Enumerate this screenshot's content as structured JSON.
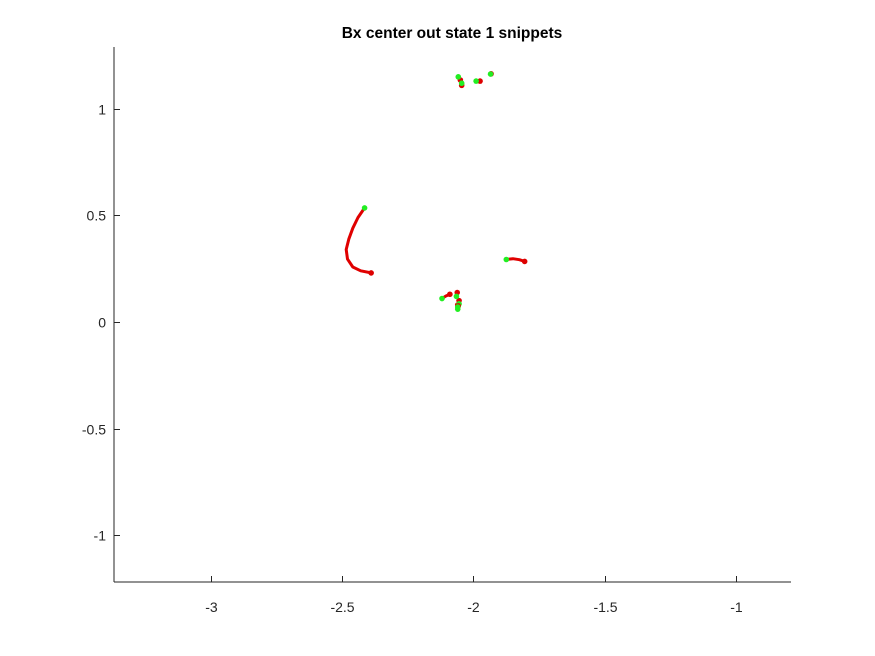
{
  "chart_data": {
    "type": "scatter",
    "title": "Bx  center out state 1 snippets",
    "xlabel": "",
    "ylabel": "",
    "xlim": [
      -3.37,
      -0.79
    ],
    "ylim": [
      -1.22,
      1.29
    ],
    "grid": false,
    "x_ticks": [
      {
        "value": -3,
        "label": "-3"
      },
      {
        "value": -2.5,
        "label": "-2.5"
      },
      {
        "value": -2,
        "label": "-2"
      },
      {
        "value": -1.5,
        "label": "-1.5"
      },
      {
        "value": -1,
        "label": "-1"
      }
    ],
    "y_ticks": [
      {
        "value": -1,
        "label": "-1"
      },
      {
        "value": -0.5,
        "label": "-0.5"
      },
      {
        "value": 0,
        "label": "0"
      },
      {
        "value": 0.5,
        "label": "0.5"
      },
      {
        "value": 1,
        "label": "1"
      }
    ],
    "colors": {
      "trajectory": "#e00000",
      "start_marker": "#22ee22",
      "end_marker": "#dd0000",
      "axis": "#262626"
    },
    "series": [
      {
        "start": [
          -2.415,
          0.535
        ],
        "end": [
          -2.39,
          0.23
        ],
        "points": [
          [
            -2.415,
            0.535
          ],
          [
            -2.44,
            0.49
          ],
          [
            -2.46,
            0.44
          ],
          [
            -2.475,
            0.39
          ],
          [
            -2.485,
            0.34
          ],
          [
            -2.48,
            0.295
          ],
          [
            -2.46,
            0.258
          ],
          [
            -2.43,
            0.24
          ],
          [
            -2.39,
            0.23
          ]
        ]
      },
      {
        "start": [
          -1.875,
          0.293
        ],
        "end": [
          -1.805,
          0.284
        ],
        "points": [
          [
            -1.875,
            0.293
          ],
          [
            -1.85,
            0.297
          ],
          [
            -1.825,
            0.292
          ],
          [
            -1.805,
            0.284
          ]
        ]
      },
      {
        "start": [
          -2.12,
          0.11
        ],
        "end": [
          -2.09,
          0.13
        ],
        "points": [
          [
            -2.12,
            0.11
          ],
          [
            -2.105,
            0.122
          ],
          [
            -2.09,
            0.13
          ]
        ]
      },
      {
        "start": [
          -2.06,
          0.06
        ],
        "end": [
          -2.06,
          0.08
        ],
        "points": [
          [
            -2.06,
            0.06
          ],
          [
            -2.06,
            0.07
          ],
          [
            -2.06,
            0.08
          ]
        ]
      },
      {
        "start": [
          -2.055,
          0.085
        ],
        "end": [
          -2.055,
          0.1
        ],
        "points": [
          [
            -2.055,
            0.085
          ],
          [
            -2.055,
            0.1
          ]
        ]
      },
      {
        "start": [
          -2.065,
          0.12
        ],
        "end": [
          -2.062,
          0.138
        ],
        "points": [
          [
            -2.065,
            0.12
          ],
          [
            -2.062,
            0.138
          ]
        ]
      },
      {
        "start": [
          -2.06,
          0.07
        ],
        "end": [
          -2.058,
          0.075
        ],
        "points": [
          [
            -2.06,
            0.07
          ],
          [
            -2.058,
            0.075
          ]
        ]
      },
      {
        "start": [
          -2.058,
          1.15
        ],
        "end": [
          -2.05,
          1.135
        ],
        "points": [
          [
            -2.058,
            1.15
          ],
          [
            -2.05,
            1.135
          ]
        ]
      },
      {
        "start": [
          -2.045,
          1.12
        ],
        "end": [
          -2.045,
          1.11
        ],
        "points": [
          [
            -2.045,
            1.12
          ],
          [
            -2.045,
            1.11
          ]
        ]
      },
      {
        "start": [
          -1.99,
          1.13
        ],
        "end": [
          -1.975,
          1.13
        ],
        "points": [
          [
            -1.99,
            1.13
          ],
          [
            -1.975,
            1.13
          ]
        ]
      },
      {
        "start": [
          -1.935,
          1.163
        ],
        "end": [
          -1.933,
          1.164
        ],
        "points": [
          [
            -1.935,
            1.163
          ],
          [
            -1.933,
            1.164
          ]
        ]
      }
    ]
  }
}
